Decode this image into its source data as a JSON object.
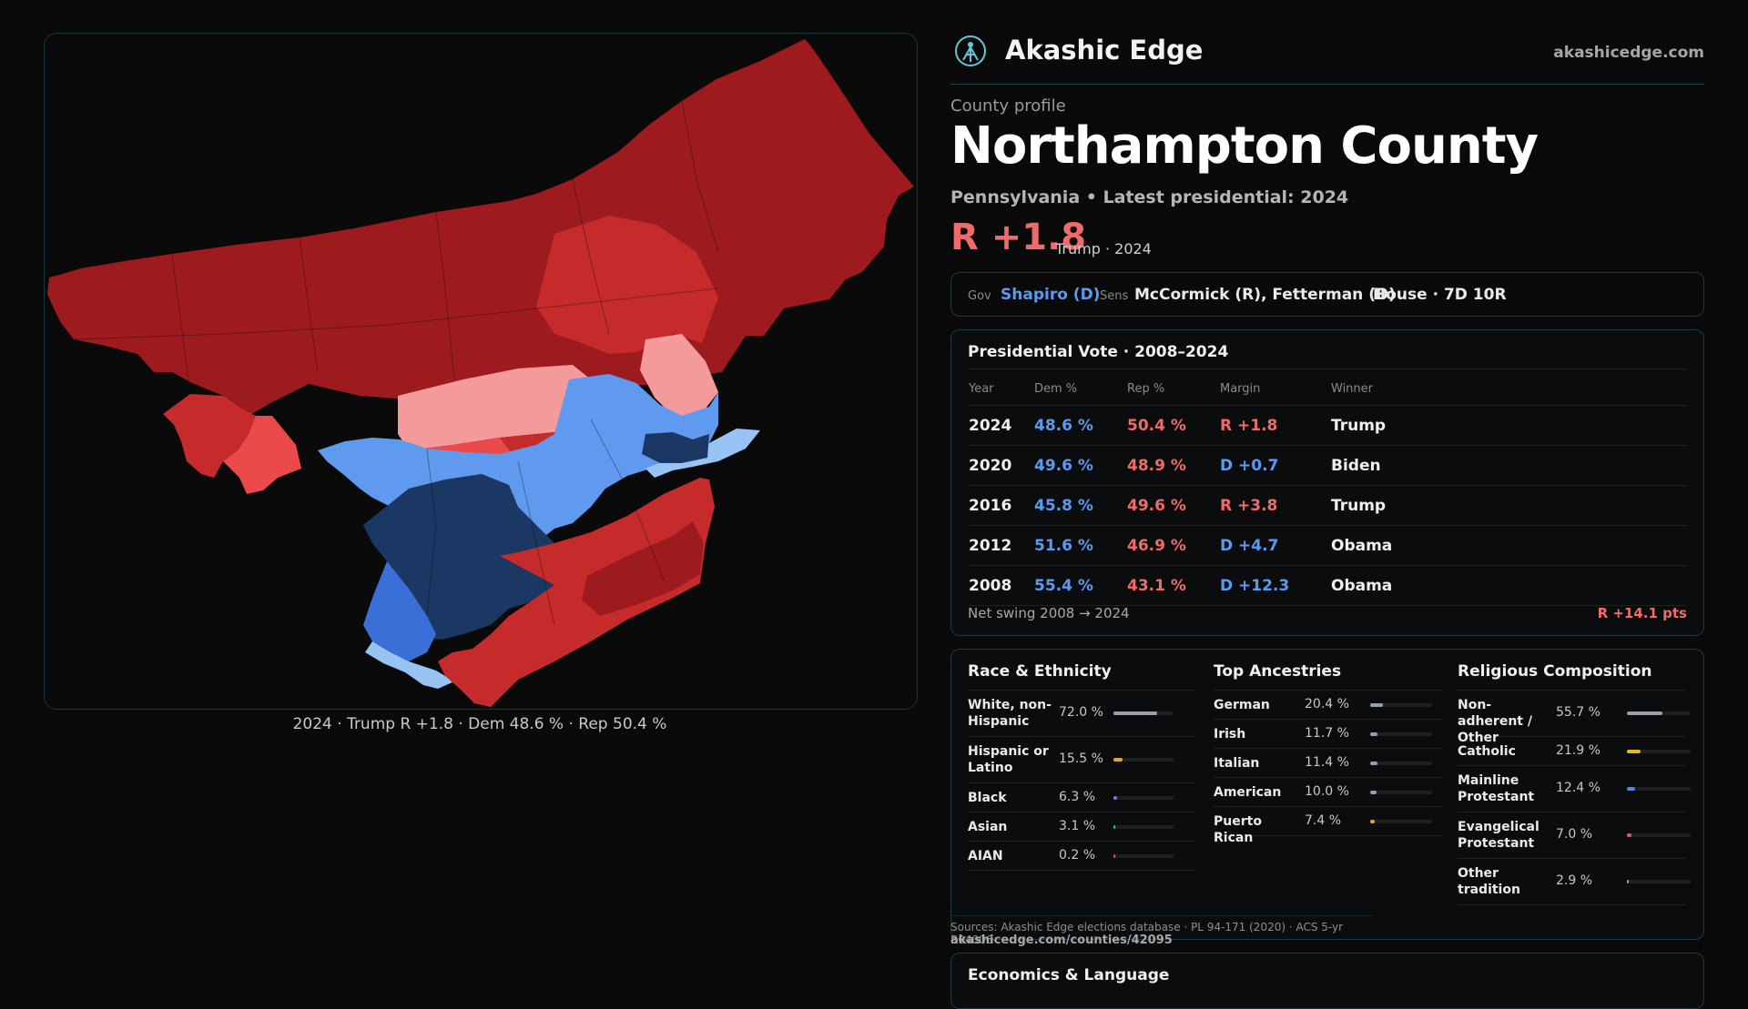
{
  "map": {
    "caption": "2024 · Trump R +1.8 · Dem 48.6 % · Rep 50.4 %",
    "colors": {
      "safe_r": "#9d1b1f",
      "lean_r": "#c62b2b",
      "tilt_r": "#ec4a4a",
      "weak_r": "#f49a9a",
      "weak_d": "#98c3f5",
      "lean_d": "#5f9aee",
      "likely_d": "#3a6fd8",
      "safe_d": "#1b3763"
    }
  },
  "brand": {
    "name": "Akashic Edge",
    "domain": "akashicedge.com"
  },
  "profile": {
    "kicker": "County profile",
    "title": "Northampton County",
    "subtitle": "Pennsylvania • Latest presidential: 2024",
    "margin": "R +1.8",
    "margin_note": "Trump · 2024"
  },
  "officials": {
    "gov_label": "Gov",
    "gov": "Shapiro (D)",
    "sens_label": "Sens",
    "sens": "McCormick (R), Fetterman (D)",
    "house": "House · 7D 10R"
  },
  "presidential": {
    "title": "Presidential Vote · 2008–2024",
    "headers": [
      "Year",
      "Dem %",
      "Rep %",
      "Margin",
      "Winner"
    ],
    "rows": [
      {
        "year": "2024",
        "dem": "48.6 %",
        "rep": "50.4 %",
        "margin": "R +1.8",
        "party": "R",
        "winner": "Trump"
      },
      {
        "year": "2020",
        "dem": "49.6 %",
        "rep": "48.9 %",
        "margin": "D +0.7",
        "party": "D",
        "winner": "Biden"
      },
      {
        "year": "2016",
        "dem": "45.8 %",
        "rep": "49.6 %",
        "margin": "R +3.8",
        "party": "R",
        "winner": "Trump"
      },
      {
        "year": "2012",
        "dem": "51.6 %",
        "rep": "46.9 %",
        "margin": "D +4.7",
        "party": "D",
        "winner": "Obama"
      },
      {
        "year": "2008",
        "dem": "55.4 %",
        "rep": "43.1 %",
        "margin": "D +12.3",
        "party": "D",
        "winner": "Obama"
      }
    ],
    "swing_label": "Net swing 2008 → 2024",
    "swing_value": "R +14.1 pts"
  },
  "race": {
    "title": "Race & Ethnicity",
    "items": [
      {
        "name": "White, non-Hispanic",
        "pct": "72.0 %",
        "value": 72.0,
        "color": "#9aa0a8"
      },
      {
        "name": "Hispanic or Latino",
        "pct": "15.5 %",
        "value": 15.5,
        "color": "#e5a72a"
      },
      {
        "name": "Black",
        "pct": "6.3 %",
        "value": 6.3,
        "color": "#8f6be8"
      },
      {
        "name": "Asian",
        "pct": "3.1 %",
        "value": 3.1,
        "color": "#2fbf7a"
      },
      {
        "name": "AIAN",
        "pct": "0.2 %",
        "value": 0.2,
        "color": "#d9534f"
      }
    ]
  },
  "ancestry": {
    "title": "Top Ancestries",
    "items": [
      {
        "name": "German",
        "pct": "20.4 %",
        "value": 20.4,
        "color": "#9aa0a8"
      },
      {
        "name": "Irish",
        "pct": "11.7 %",
        "value": 11.7,
        "color": "#9aa0a8"
      },
      {
        "name": "Italian",
        "pct": "11.4 %",
        "value": 11.4,
        "color": "#9aa0a8"
      },
      {
        "name": "American",
        "pct": "10.0 %",
        "value": 10.0,
        "color": "#9aa0a8"
      },
      {
        "name": "Puerto Rican",
        "pct": "7.4 %",
        "value": 7.4,
        "color": "#e5a72a"
      }
    ]
  },
  "religion": {
    "title": "Religious Composition",
    "items": [
      {
        "name": "Non-adherent / Other",
        "pct": "55.7 %",
        "value": 55.7,
        "color": "#9aa0a8"
      },
      {
        "name": "Catholic",
        "pct": "21.9 %",
        "value": 21.9,
        "color": "#e5b52a"
      },
      {
        "name": "Mainline Protestant",
        "pct": "12.4 %",
        "value": 12.4,
        "color": "#4a86e8"
      },
      {
        "name": "Evangelical Protestant",
        "pct": "7.0 %",
        "value": 7.0,
        "color": "#e05a5a"
      },
      {
        "name": "Other tradition",
        "pct": "2.9 %",
        "value": 2.9,
        "color": "#9aa0a8"
      }
    ]
  },
  "sources": "Sources: Akashic Edge elections database · PL 94-171 (2020) · ACS 5-yr B04006",
  "source_url": "akashicedge.com/counties/42095",
  "economics": {
    "title": "Economics & Language"
  }
}
